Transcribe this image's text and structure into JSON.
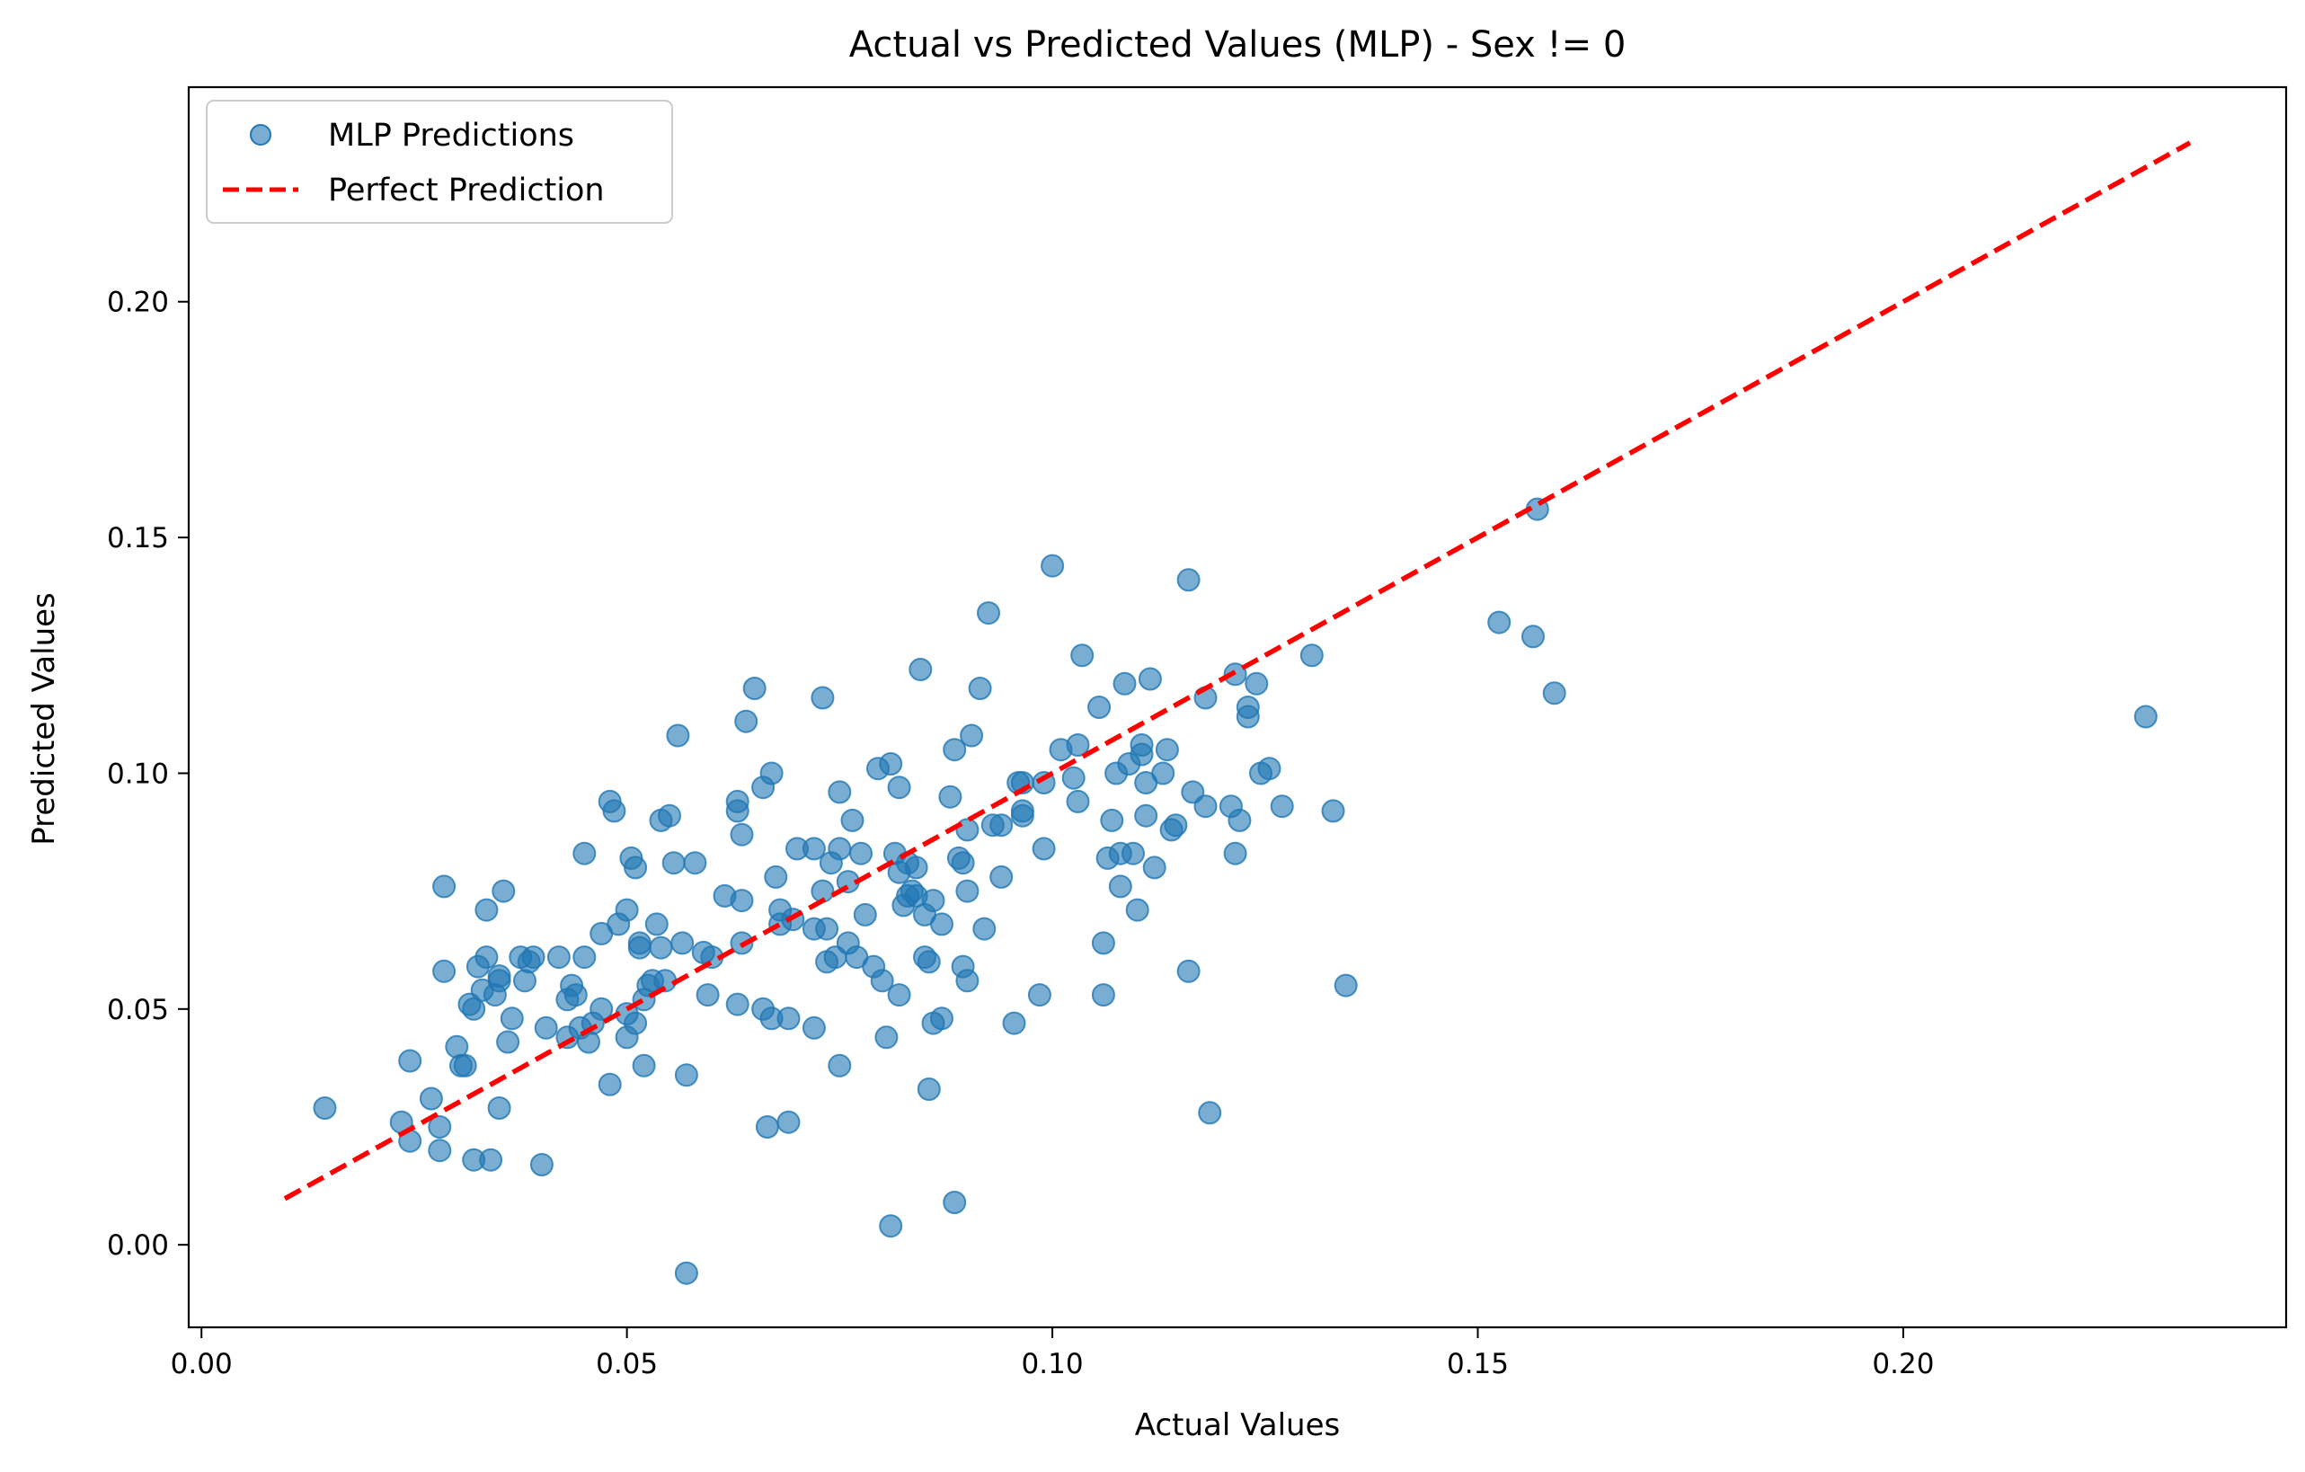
{
  "chart_data": {
    "type": "scatter",
    "title": "Actual vs Predicted Values (MLP) - Sex != 0",
    "xlabel": "Actual Values",
    "ylabel": "Predicted Values",
    "xlim": [
      -0.0015,
      0.245
    ],
    "ylim": [
      -0.0175,
      0.2455
    ],
    "xticks": [
      0.0,
      0.05,
      0.1,
      0.15,
      0.2
    ],
    "xtick_labels": [
      "0.00",
      "0.05",
      "0.10",
      "0.15",
      "0.20"
    ],
    "yticks": [
      0.0,
      0.05,
      0.1,
      0.15,
      0.2
    ],
    "ytick_labels": [
      "0.00",
      "0.05",
      "0.10",
      "0.15",
      "0.20"
    ],
    "grid": false,
    "legend": {
      "placement": "top-left"
    },
    "colors": {
      "points": "#1f77b4",
      "line": "#ff0000"
    },
    "series": [
      {
        "name": "MLP Predictions",
        "kind": "scatter",
        "points": [
          [
            0.0145,
            0.029
          ],
          [
            0.0235,
            0.026
          ],
          [
            0.0245,
            0.039
          ],
          [
            0.0245,
            0.022
          ],
          [
            0.027,
            0.031
          ],
          [
            0.028,
            0.025
          ],
          [
            0.028,
            0.02
          ],
          [
            0.0285,
            0.076
          ],
          [
            0.0285,
            0.058
          ],
          [
            0.03,
            0.042
          ],
          [
            0.0305,
            0.038
          ],
          [
            0.031,
            0.038
          ],
          [
            0.0315,
            0.051
          ],
          [
            0.032,
            0.05
          ],
          [
            0.032,
            0.018
          ],
          [
            0.0325,
            0.059
          ],
          [
            0.033,
            0.054
          ],
          [
            0.0335,
            0.071
          ],
          [
            0.0335,
            0.061
          ],
          [
            0.034,
            0.018
          ],
          [
            0.0345,
            0.053
          ],
          [
            0.035,
            0.057
          ],
          [
            0.035,
            0.056
          ],
          [
            0.035,
            0.029
          ],
          [
            0.0355,
            0.075
          ],
          [
            0.036,
            0.043
          ],
          [
            0.0365,
            0.048
          ],
          [
            0.0375,
            0.061
          ],
          [
            0.038,
            0.056
          ],
          [
            0.0385,
            0.06
          ],
          [
            0.039,
            0.061
          ],
          [
            0.04,
            0.017
          ],
          [
            0.0405,
            0.046
          ],
          [
            0.042,
            0.061
          ],
          [
            0.043,
            0.044
          ],
          [
            0.043,
            0.052
          ],
          [
            0.0435,
            0.055
          ],
          [
            0.044,
            0.053
          ],
          [
            0.0445,
            0.046
          ],
          [
            0.045,
            0.061
          ],
          [
            0.045,
            0.083
          ],
          [
            0.0455,
            0.043
          ],
          [
            0.046,
            0.047
          ],
          [
            0.047,
            0.066
          ],
          [
            0.047,
            0.05
          ],
          [
            0.048,
            0.094
          ],
          [
            0.048,
            0.034
          ],
          [
            0.0485,
            0.092
          ],
          [
            0.049,
            0.068
          ],
          [
            0.05,
            0.071
          ],
          [
            0.05,
            0.044
          ],
          [
            0.05,
            0.049
          ],
          [
            0.0505,
            0.082
          ],
          [
            0.051,
            0.08
          ],
          [
            0.051,
            0.047
          ],
          [
            0.0515,
            0.064
          ],
          [
            0.0515,
            0.063
          ],
          [
            0.052,
            0.052
          ],
          [
            0.052,
            0.038
          ],
          [
            0.0525,
            0.055
          ],
          [
            0.053,
            0.056
          ],
          [
            0.0535,
            0.068
          ],
          [
            0.054,
            0.09
          ],
          [
            0.054,
            0.063
          ],
          [
            0.0545,
            0.056
          ],
          [
            0.055,
            0.091
          ],
          [
            0.0555,
            0.081
          ],
          [
            0.056,
            0.108
          ],
          [
            0.0565,
            0.064
          ],
          [
            0.057,
            0.036
          ],
          [
            0.057,
            -0.006
          ],
          [
            0.058,
            0.081
          ],
          [
            0.059,
            0.062
          ],
          [
            0.0595,
            0.053
          ],
          [
            0.06,
            0.061
          ],
          [
            0.0615,
            0.074
          ],
          [
            0.063,
            0.092
          ],
          [
            0.063,
            0.094
          ],
          [
            0.063,
            0.051
          ],
          [
            0.0635,
            0.087
          ],
          [
            0.0635,
            0.073
          ],
          [
            0.0635,
            0.064
          ],
          [
            0.064,
            0.111
          ],
          [
            0.065,
            0.118
          ],
          [
            0.066,
            0.097
          ],
          [
            0.066,
            0.05
          ],
          [
            0.0665,
            0.025
          ],
          [
            0.067,
            0.1
          ],
          [
            0.067,
            0.048
          ],
          [
            0.0675,
            0.078
          ],
          [
            0.068,
            0.071
          ],
          [
            0.068,
            0.068
          ],
          [
            0.069,
            0.026
          ],
          [
            0.069,
            0.048
          ],
          [
            0.0695,
            0.069
          ],
          [
            0.07,
            0.084
          ],
          [
            0.072,
            0.084
          ],
          [
            0.072,
            0.067
          ],
          [
            0.072,
            0.046
          ],
          [
            0.073,
            0.116
          ],
          [
            0.073,
            0.075
          ],
          [
            0.0735,
            0.067
          ],
          [
            0.0735,
            0.06
          ],
          [
            0.074,
            0.081
          ],
          [
            0.0745,
            0.061
          ],
          [
            0.075,
            0.096
          ],
          [
            0.075,
            0.084
          ],
          [
            0.075,
            0.038
          ],
          [
            0.076,
            0.077
          ],
          [
            0.076,
            0.064
          ],
          [
            0.0765,
            0.09
          ],
          [
            0.077,
            0.061
          ],
          [
            0.0775,
            0.083
          ],
          [
            0.078,
            0.07
          ],
          [
            0.079,
            0.059
          ],
          [
            0.0795,
            0.101
          ],
          [
            0.08,
            0.056
          ],
          [
            0.0805,
            0.044
          ],
          [
            0.081,
            0.102
          ],
          [
            0.081,
            0.004
          ],
          [
            0.0815,
            0.083
          ],
          [
            0.082,
            0.097
          ],
          [
            0.082,
            0.079
          ],
          [
            0.082,
            0.053
          ],
          [
            0.0825,
            0.072
          ],
          [
            0.083,
            0.081
          ],
          [
            0.083,
            0.074
          ],
          [
            0.0835,
            0.075
          ],
          [
            0.084,
            0.074
          ],
          [
            0.084,
            0.08
          ],
          [
            0.0845,
            0.122
          ],
          [
            0.085,
            0.07
          ],
          [
            0.085,
            0.061
          ],
          [
            0.0855,
            0.06
          ],
          [
            0.0855,
            0.033
          ],
          [
            0.086,
            0.073
          ],
          [
            0.086,
            0.047
          ],
          [
            0.087,
            0.048
          ],
          [
            0.087,
            0.068
          ],
          [
            0.088,
            0.095
          ],
          [
            0.0885,
            0.105
          ],
          [
            0.0885,
            0.009
          ],
          [
            0.089,
            0.082
          ],
          [
            0.0895,
            0.081
          ],
          [
            0.0895,
            0.059
          ],
          [
            0.09,
            0.088
          ],
          [
            0.09,
            0.075
          ],
          [
            0.09,
            0.056
          ],
          [
            0.0905,
            0.108
          ],
          [
            0.0915,
            0.118
          ],
          [
            0.092,
            0.067
          ],
          [
            0.0925,
            0.134
          ],
          [
            0.093,
            0.089
          ],
          [
            0.094,
            0.089
          ],
          [
            0.094,
            0.078
          ],
          [
            0.0955,
            0.047
          ],
          [
            0.096,
            0.098
          ],
          [
            0.0965,
            0.092
          ],
          [
            0.0965,
            0.091
          ],
          [
            0.0965,
            0.098
          ],
          [
            0.0985,
            0.053
          ],
          [
            0.099,
            0.084
          ],
          [
            0.099,
            0.098
          ],
          [
            0.1,
            0.144
          ],
          [
            0.101,
            0.105
          ],
          [
            0.1025,
            0.099
          ],
          [
            0.103,
            0.094
          ],
          [
            0.103,
            0.106
          ],
          [
            0.1035,
            0.125
          ],
          [
            0.1055,
            0.114
          ],
          [
            0.106,
            0.064
          ],
          [
            0.106,
            0.053
          ],
          [
            0.1065,
            0.082
          ],
          [
            0.107,
            0.09
          ],
          [
            0.1075,
            0.1
          ],
          [
            0.108,
            0.076
          ],
          [
            0.108,
            0.083
          ],
          [
            0.1085,
            0.119
          ],
          [
            0.109,
            0.102
          ],
          [
            0.1095,
            0.083
          ],
          [
            0.11,
            0.071
          ],
          [
            0.1105,
            0.106
          ],
          [
            0.1105,
            0.104
          ],
          [
            0.111,
            0.098
          ],
          [
            0.111,
            0.091
          ],
          [
            0.1115,
            0.12
          ],
          [
            0.112,
            0.08
          ],
          [
            0.113,
            0.1
          ],
          [
            0.1135,
            0.105
          ],
          [
            0.114,
            0.088
          ],
          [
            0.1145,
            0.089
          ],
          [
            0.116,
            0.141
          ],
          [
            0.116,
            0.058
          ],
          [
            0.1165,
            0.096
          ],
          [
            0.118,
            0.093
          ],
          [
            0.118,
            0.116
          ],
          [
            0.1185,
            0.028
          ],
          [
            0.121,
            0.093
          ],
          [
            0.1215,
            0.083
          ],
          [
            0.1215,
            0.121
          ],
          [
            0.122,
            0.09
          ],
          [
            0.123,
            0.114
          ],
          [
            0.123,
            0.112
          ],
          [
            0.124,
            0.119
          ],
          [
            0.1245,
            0.1
          ],
          [
            0.1255,
            0.101
          ],
          [
            0.127,
            0.093
          ],
          [
            0.1305,
            0.125
          ],
          [
            0.133,
            0.092
          ],
          [
            0.1345,
            0.055
          ],
          [
            0.1525,
            0.132
          ],
          [
            0.1565,
            0.129
          ],
          [
            0.157,
            0.156
          ],
          [
            0.159,
            0.117
          ],
          [
            0.2285,
            0.112
          ]
        ]
      },
      {
        "name": "Perfect Prediction",
        "kind": "line",
        "x": [
          0.0098,
          0.2337
        ],
        "y": [
          0.0098,
          0.2337
        ]
      }
    ]
  }
}
